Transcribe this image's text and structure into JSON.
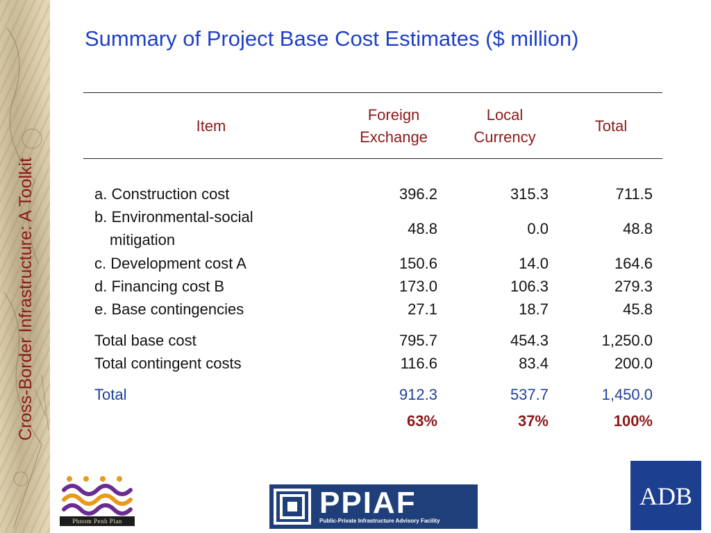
{
  "sidebar": {
    "title": "Cross-Border Infrastructure: A Toolkit"
  },
  "slide": {
    "title": "Summary of Project Base Cost Estimates ($ million)"
  },
  "table": {
    "headers": {
      "item": "Item",
      "foreign_1": "Foreign",
      "foreign_2": "Exchange",
      "local_1": "Local",
      "local_2": "Currency",
      "total": "Total"
    },
    "rows": [
      {
        "item": "a. Construction cost",
        "fx": "396.2",
        "lc": "315.3",
        "total": "711.5"
      },
      {
        "item": "b. Environmental-social",
        "item2": "mitigation",
        "fx": "48.8",
        "lc": "0.0",
        "total": "48.8"
      },
      {
        "item": "c. Development cost A",
        "fx": "150.6",
        "lc": "14.0",
        "total": "164.6"
      },
      {
        "item": "d. Financing cost B",
        "fx": "173.0",
        "lc": "106.3",
        "total": "279.3"
      },
      {
        "item": "e. Base contingencies",
        "fx": "27.1",
        "lc": "18.7",
        "total": "45.8"
      }
    ],
    "subtotals": [
      {
        "item": "Total base cost",
        "fx": "795.7",
        "lc": "454.3",
        "total": "1,250.0"
      },
      {
        "item": "Total contingent costs",
        "fx": "116.6",
        "lc": "83.4",
        "total": "200.0"
      }
    ],
    "grand_total": {
      "item": "Total",
      "fx": "912.3",
      "lc": "537.7",
      "total": "1,450.0"
    },
    "shares": {
      "fx": "63%",
      "lc": "37%",
      "total": "100%"
    }
  },
  "logos": {
    "ppp_caption": "Phnom Penh Plan",
    "ppiaf_name": "PPIAF",
    "ppiaf_subtitle": "Public-Private Infrastructure Advisory Facility",
    "adb_name": "ADB"
  },
  "colors": {
    "title_blue": "#1f3fc8",
    "header_red": "#8b1a1a",
    "total_blue": "#1f3f9c",
    "adb_blue": "#1d3f8f",
    "ppiaf_blue": "#1f3f7a"
  }
}
